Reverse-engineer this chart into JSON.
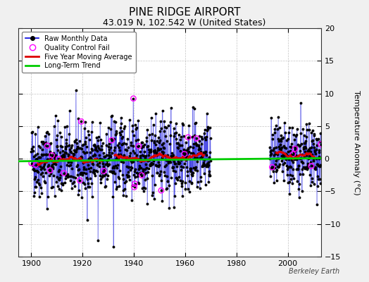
{
  "title": "PINE RIDGE AIRPORT",
  "subtitle": "43.019 N, 102.542 W (United States)",
  "ylabel": "Temperature Anomaly (°C)",
  "credit": "Berkeley Earth",
  "ylim": [
    -15,
    20
  ],
  "yticks": [
    -15,
    -10,
    -5,
    0,
    5,
    10,
    15,
    20
  ],
  "xlim": [
    1895,
    2013
  ],
  "xticks": [
    1900,
    1920,
    1940,
    1960,
    1980,
    2000
  ],
  "background_color": "#f0f0f0",
  "plot_bg_color": "#ffffff",
  "raw_line_color": "#0000dd",
  "raw_dot_color": "#000000",
  "qc_color": "#ff00ff",
  "moving_avg_color": "#dd0000",
  "trend_color": "#00cc00",
  "title_fontsize": 11,
  "subtitle_fontsize": 9,
  "seed": 42,
  "period1_start": 1900,
  "period1_end": 1929,
  "period2_start": 1930,
  "period2_end": 1969,
  "period3_start": 1993,
  "period3_end": 2012,
  "trend_slope": 0.004,
  "trend_intercept": -0.15
}
